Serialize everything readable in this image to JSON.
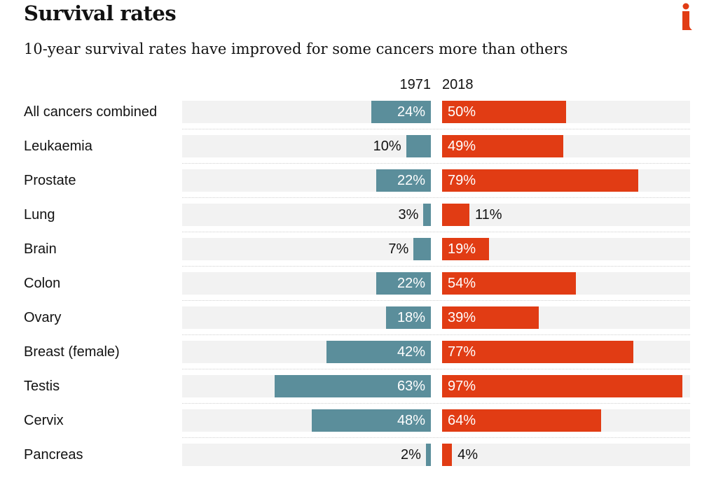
{
  "header": {
    "title": "Survival rates",
    "subtitle": "10-year survival rates have improved for some cancers more than others",
    "logo_icon": "i-logo-icon",
    "logo_color": "#e13c14"
  },
  "colors": {
    "series_1971": "#5b8e9b",
    "series_2018": "#e13c14",
    "track": "#f2f2f2"
  },
  "chart_data": {
    "type": "bar",
    "title": "Survival rates",
    "subtitle": "10-year survival rates have improved for some cancers more than others",
    "unit": "%",
    "xlim": [
      0,
      100
    ],
    "categories": [
      "All cancers combined",
      "Leukaemia",
      "Prostate",
      "Lung",
      "Brain",
      "Colon",
      "Ovary",
      "Breast (female)",
      "Testis",
      "Cervix",
      "Pancreas"
    ],
    "series": [
      {
        "name": "1971",
        "values": [
          24,
          10,
          22,
          3,
          7,
          22,
          18,
          42,
          63,
          48,
          2
        ],
        "labels": [
          "24%",
          "10%",
          "22%",
          "3%",
          "7%",
          "22%",
          "18%",
          "42%",
          "63%",
          "48%",
          "2%"
        ]
      },
      {
        "name": "2018",
        "values": [
          50,
          49,
          79,
          11,
          19,
          54,
          39,
          77,
          97,
          64,
          4
        ],
        "labels": [
          "50%",
          "49%",
          "79%",
          "11%",
          "19%",
          "54%",
          "39%",
          "77%",
          "97%",
          "64%",
          "4%"
        ]
      }
    ]
  }
}
